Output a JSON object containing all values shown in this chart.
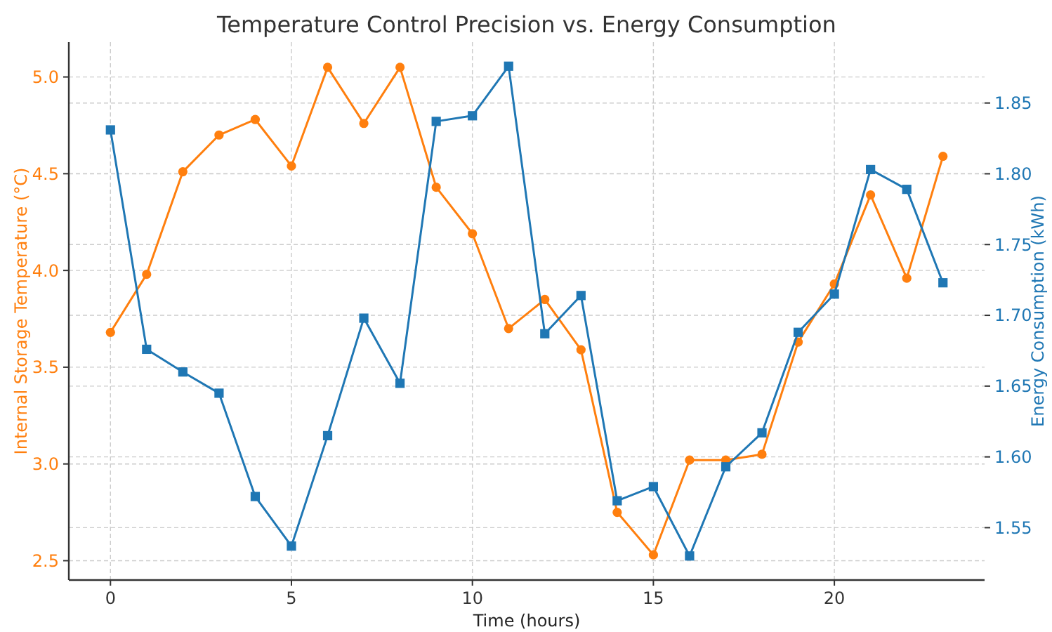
{
  "chart_data": {
    "type": "line",
    "title": "Temperature Control Precision vs. Energy Consumption",
    "xlabel": "Time (hours)",
    "ylabel": "Internal Storage Temperature (°C)",
    "y2label": "Energy Consumption (kWh)",
    "x": [
      0,
      1,
      2,
      3,
      4,
      5,
      6,
      7,
      8,
      9,
      10,
      11,
      12,
      13,
      14,
      15,
      16,
      17,
      18,
      19,
      20,
      21,
      22,
      23
    ],
    "series": [
      {
        "color": "#ff7f0e",
        "marker": "circle",
        "values": [
          3.68,
          3.98,
          4.51,
          4.7,
          4.78,
          4.54,
          5.05,
          4.76,
          5.05,
          4.43,
          4.19,
          3.7,
          3.85,
          3.59,
          2.75,
          2.53,
          3.02,
          3.02,
          3.05,
          3.63,
          3.93,
          4.39,
          3.96,
          4.59
        ]
      },
      {
        "color": "#1f77b4",
        "marker": "square",
        "axis": "y2",
        "values": [
          1.831,
          1.676,
          1.66,
          1.645,
          1.572,
          1.537,
          1.615,
          1.698,
          1.652,
          1.837,
          1.841,
          1.876,
          1.687,
          1.714,
          1.569,
          1.579,
          1.53,
          1.593,
          1.617,
          1.688,
          1.715,
          1.803,
          1.789,
          1.723
        ]
      }
    ],
    "xlim": [
      -1.15,
      24.15
    ],
    "xticks": [
      0,
      5,
      10,
      15,
      20
    ],
    "ylim": [
      2.4,
      5.18
    ],
    "yticks": [
      2.5,
      {
        "value": 3,
        "label": "3.0"
      },
      3.5,
      {
        "value": 4,
        "label": "4.0"
      },
      4.5,
      {
        "value": 5,
        "label": "5.0"
      }
    ],
    "y2lim": [
      1.513,
      1.893
    ],
    "y2ticks": [
      1.55,
      {
        "value": 1.6,
        "label": "1.60"
      },
      1.65,
      {
        "value": 1.7,
        "label": "1.70"
      },
      1.75,
      {
        "value": 1.8,
        "label": "1.80"
      },
      1.85
    ],
    "grid": true,
    "line_style": "solid"
  }
}
